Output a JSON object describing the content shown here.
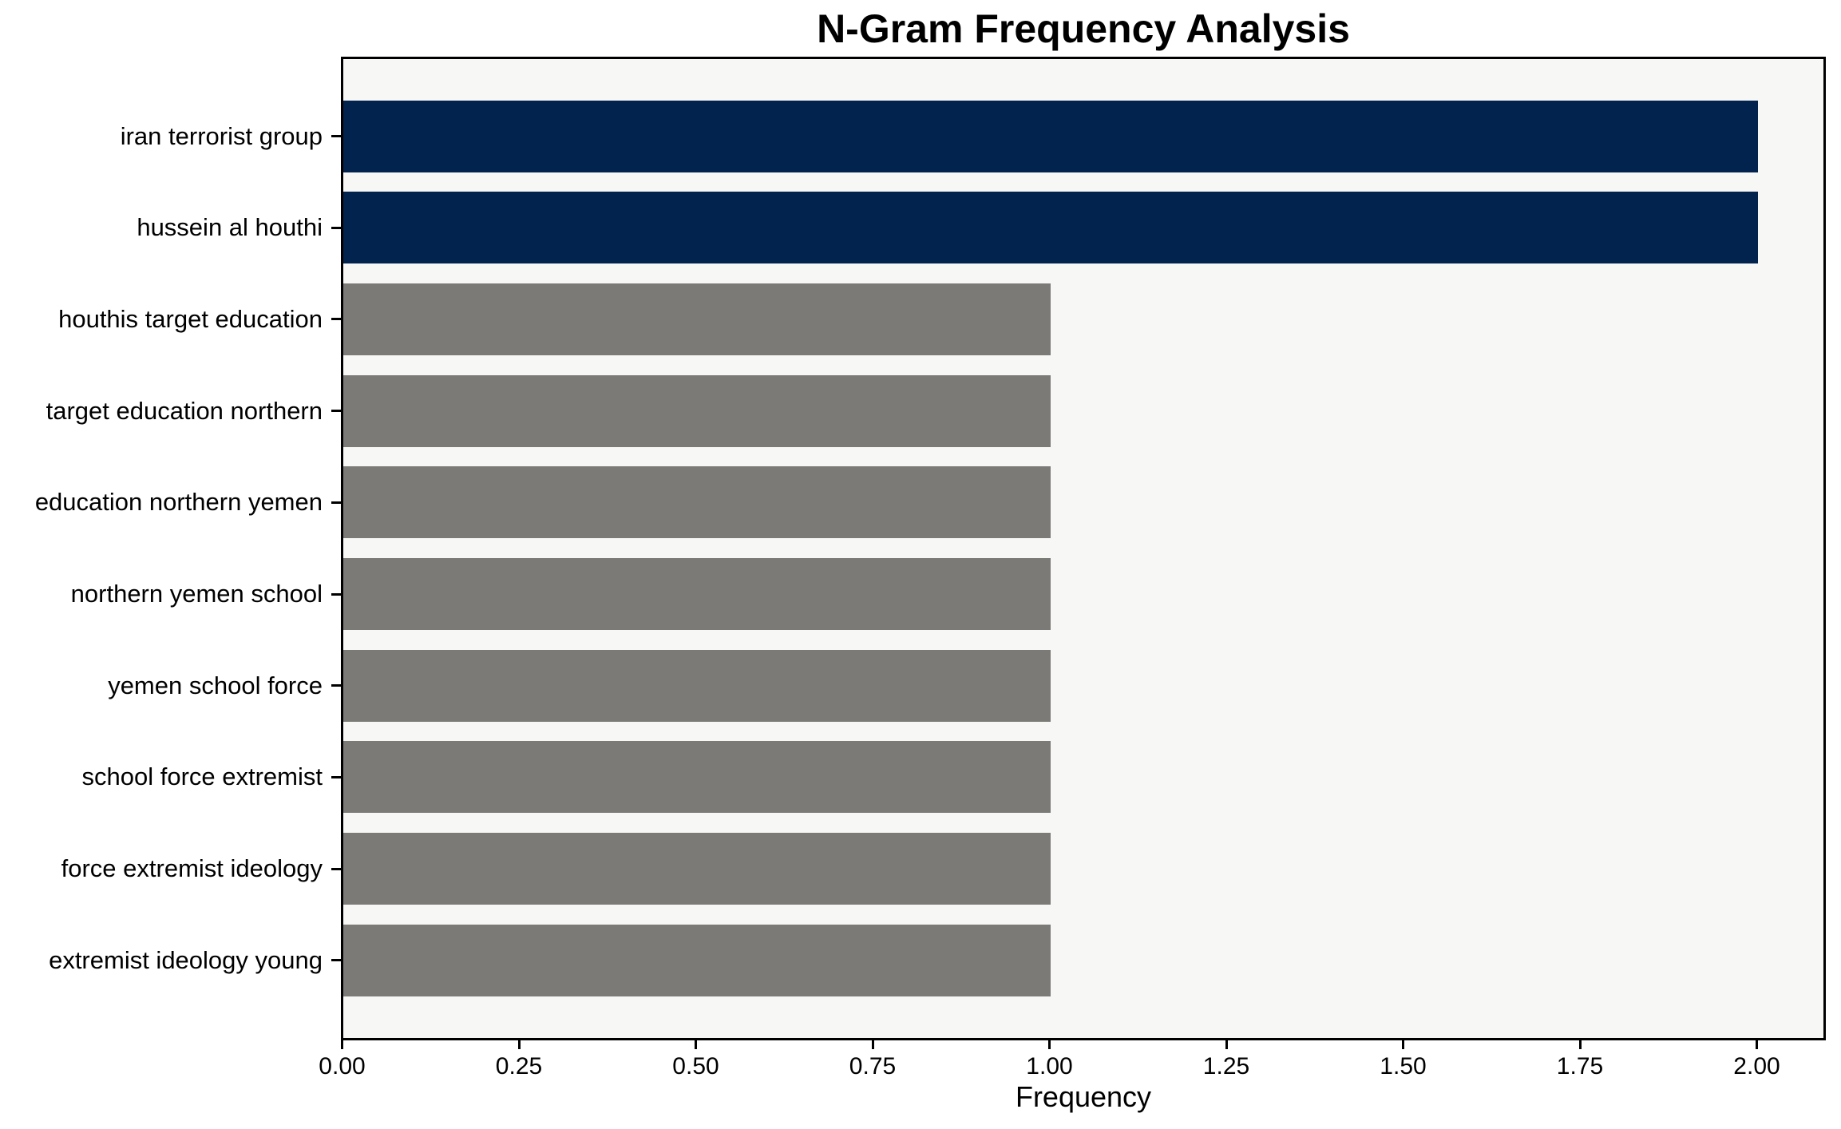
{
  "chart": {
    "title": "N-Gram Frequency Analysis"
  },
  "chart_data": {
    "type": "bar",
    "orientation": "horizontal",
    "title": "N-Gram Frequency Analysis",
    "xlabel": "Frequency",
    "ylabel": "",
    "categories": [
      "iran terrorist group",
      "hussein al houthi",
      "houthis target education",
      "target education northern",
      "education northern yemen",
      "northern yemen school",
      "yemen school force",
      "school force extremist",
      "force extremist ideology",
      "extremist ideology young"
    ],
    "values": [
      2,
      2,
      1,
      1,
      1,
      1,
      1,
      1,
      1,
      1
    ],
    "bar_colors": [
      "#02234e",
      "#02234e",
      "#7b7a77",
      "#7b7a77",
      "#7b7a77",
      "#7b7a77",
      "#7b7a77",
      "#7b7a77",
      "#7b7a77",
      "#7b7a77"
    ],
    "highlight_color": "#02234e",
    "base_color": "#7b7a77",
    "xlim": [
      0,
      2.1
    ],
    "xtick_values": [
      0,
      0.25,
      0.5,
      0.75,
      1,
      1.25,
      1.5,
      1.75,
      2
    ],
    "xtick_labels": [
      "0.00",
      "0.25",
      "0.50",
      "0.75",
      "1.00",
      "1.25",
      "1.50",
      "1.75",
      "2.00"
    ],
    "grid": false,
    "legend_position": "none",
    "plot_background": "#f7f7f6",
    "figure_background": "#ffffff",
    "spine_color": "#000000"
  }
}
